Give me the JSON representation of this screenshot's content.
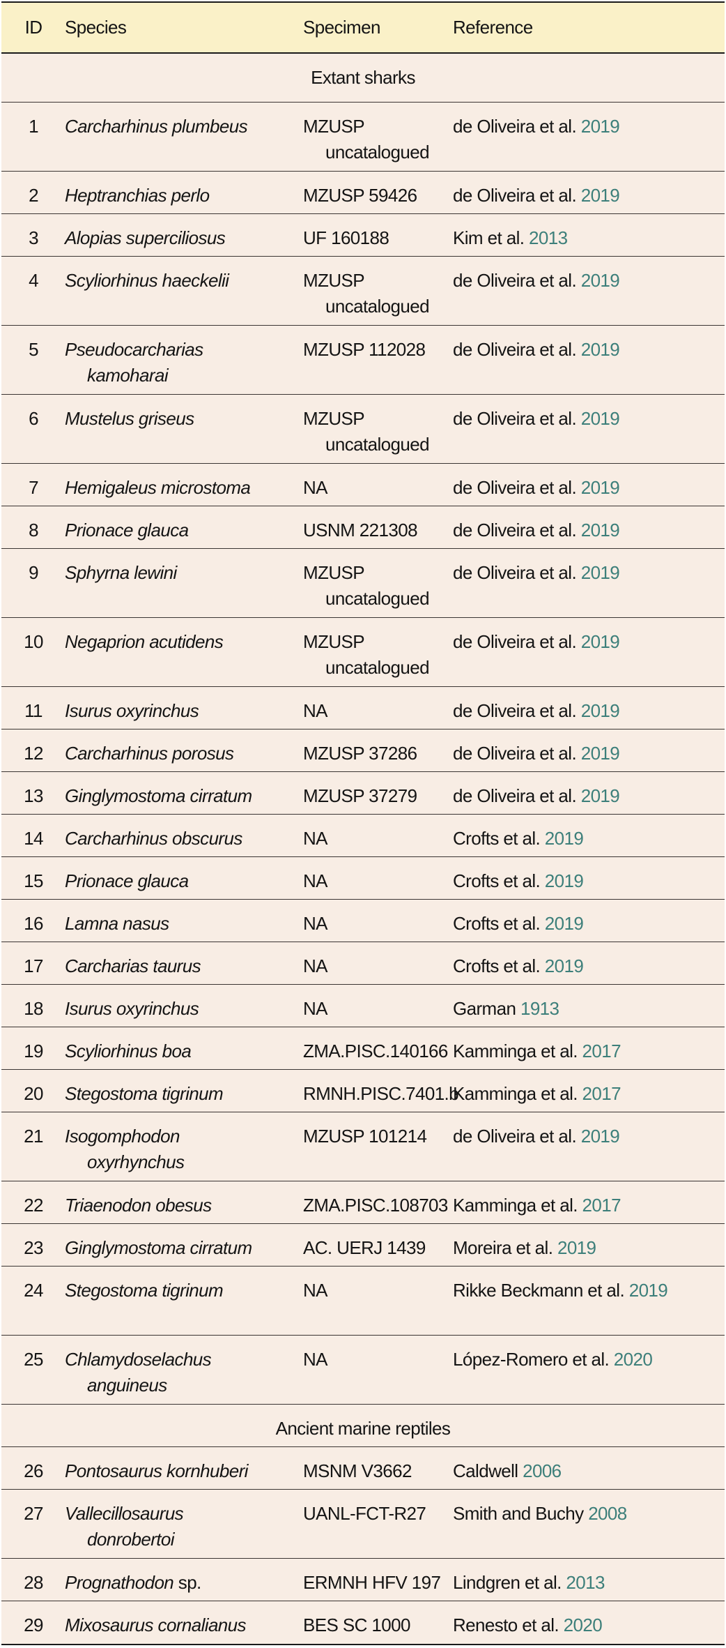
{
  "header": {
    "id": "ID",
    "species": "Species",
    "specimen": "Specimen",
    "reference": "Reference"
  },
  "colors": {
    "header_bg": "#faf1c8",
    "body_bg": "#f8ede4",
    "year_link": "#3d7f7a"
  },
  "sections": [
    {
      "title": "Extant sharks",
      "rows": [
        {
          "id": "1",
          "species": "Carcharhinus plumbeus",
          "specimen": "MZUSP uncatalogued",
          "ref_text": "de Oliveira et al.",
          "ref_year": "2019"
        },
        {
          "id": "2",
          "species": "Heptranchias perlo",
          "specimen": "MZUSP 59426",
          "ref_text": "de Oliveira et al.",
          "ref_year": "2019"
        },
        {
          "id": "3",
          "species": "Alopias superciliosus",
          "specimen": "UF 160188",
          "ref_text": "Kim et al.",
          "ref_year": "2013"
        },
        {
          "id": "4",
          "species": "Scyliorhinus haeckelii",
          "specimen": "MZUSP uncatalogued",
          "ref_text": "de Oliveira et al.",
          "ref_year": "2019"
        },
        {
          "id": "5",
          "species": "Pseudocarcharias kamoharai",
          "specimen": "MZUSP 112028",
          "ref_text": "de Oliveira et al.",
          "ref_year": "2019"
        },
        {
          "id": "6",
          "species": "Mustelus griseus",
          "specimen": "MZUSP uncatalogued",
          "ref_text": "de Oliveira et al.",
          "ref_year": "2019"
        },
        {
          "id": "7",
          "species": "Hemigaleus microstoma",
          "specimen": "NA",
          "ref_text": "de Oliveira et al.",
          "ref_year": "2019"
        },
        {
          "id": "8",
          "species": "Prionace glauca",
          "specimen": "USNM 221308",
          "ref_text": "de Oliveira et al.",
          "ref_year": "2019"
        },
        {
          "id": "9",
          "species": "Sphyrna lewini",
          "specimen": "MZUSP uncatalogued",
          "ref_text": "de Oliveira et al.",
          "ref_year": "2019"
        },
        {
          "id": "10",
          "species": "Negaprion acutidens",
          "specimen": "MZUSP uncatalogued",
          "ref_text": "de Oliveira et al.",
          "ref_year": "2019"
        },
        {
          "id": "11",
          "species": "Isurus oxyrinchus",
          "specimen": "NA",
          "ref_text": "de Oliveira et al.",
          "ref_year": "2019"
        },
        {
          "id": "12",
          "species": "Carcharhinus porosus",
          "specimen": "MZUSP 37286",
          "ref_text": "de Oliveira et al.",
          "ref_year": "2019"
        },
        {
          "id": "13",
          "species": "Ginglymostoma cirratum",
          "specimen": "MZUSP 37279",
          "ref_text": "de Oliveira et al.",
          "ref_year": "2019"
        },
        {
          "id": "14",
          "species": "Carcharhinus obscurus",
          "specimen": "NA",
          "ref_text": "Crofts et al.",
          "ref_year": "2019"
        },
        {
          "id": "15",
          "species": "Prionace glauca",
          "specimen": "NA",
          "ref_text": "Crofts et al.",
          "ref_year": "2019"
        },
        {
          "id": "16",
          "species": "Lamna nasus",
          "specimen": "NA",
          "ref_text": "Crofts et al.",
          "ref_year": "2019"
        },
        {
          "id": "17",
          "species": "Carcharias taurus",
          "specimen": "NA",
          "ref_text": "Crofts et al.",
          "ref_year": "2019"
        },
        {
          "id": "18",
          "species": "Isurus oxyrinchus",
          "specimen": "NA",
          "ref_text": "Garman",
          "ref_year": "1913"
        },
        {
          "id": "19",
          "species": "Scyliorhinus boa",
          "specimen": "ZMA.PISC.140166",
          "ref_text": "Kamminga et al.",
          "ref_year": "2017"
        },
        {
          "id": "20",
          "species": "Stegostoma tigrinum",
          "specimen": "RMNH.PISC.7401.b",
          "ref_text": "Kamminga et al.",
          "ref_year": "2017"
        },
        {
          "id": "21",
          "species": "Isogomphodon oxyrhynchus",
          "specimen": "MZUSP 101214",
          "ref_text": "de Oliveira et al.",
          "ref_year": "2019"
        },
        {
          "id": "22",
          "species": "Triaenodon obesus",
          "specimen": "ZMA.PISC.108703",
          "ref_text": "Kamminga et al.",
          "ref_year": "2017"
        },
        {
          "id": "23",
          "species": "Ginglymostoma cirratum",
          "specimen": "AC. UERJ 1439",
          "ref_text": "Moreira et al.",
          "ref_year": "2019"
        },
        {
          "id": "24",
          "species": "Stegostoma tigrinum",
          "specimen": "NA",
          "ref_text": "Rikke Beckmann et al.",
          "ref_year": "2019"
        },
        {
          "id": "25",
          "species": "Chlamydoselachus anguineus",
          "specimen": "NA",
          "ref_text": "López-Romero et al.",
          "ref_year": "2020"
        }
      ]
    },
    {
      "title": "Ancient marine reptiles",
      "rows": [
        {
          "id": "26",
          "species": "Pontosaurus kornhuberi",
          "specimen": "MSNM V3662",
          "ref_text": "Caldwell",
          "ref_year": "2006"
        },
        {
          "id": "27",
          "species": "Vallecillosaurus donrobertoi",
          "specimen": "UANL-FCT-R27",
          "ref_text": "Smith and Buchy",
          "ref_year": "2008"
        },
        {
          "id": "28",
          "species": "Prognathodon",
          "species_suffix": "sp.",
          "specimen": "ERMNH HFV 197",
          "ref_text": "Lindgren et al.",
          "ref_year": "2013"
        },
        {
          "id": "29",
          "species": "Mixosaurus cornalianus",
          "specimen": "BES SC 1000",
          "ref_text": "Renesto et al.",
          "ref_year": "2020"
        }
      ]
    }
  ]
}
